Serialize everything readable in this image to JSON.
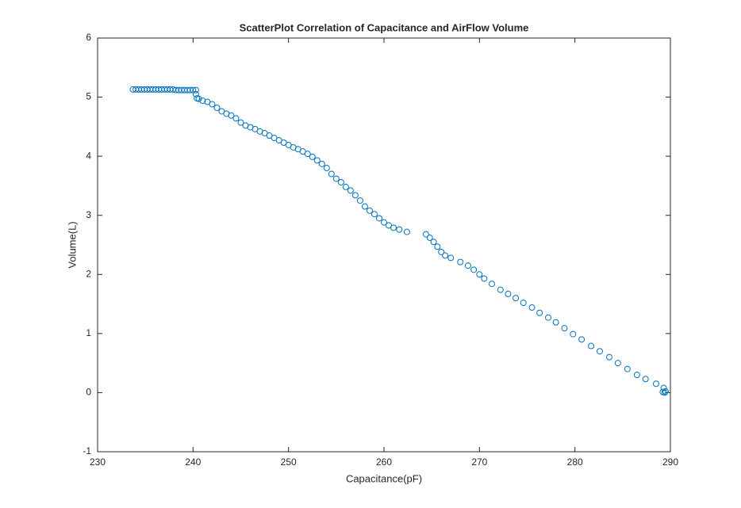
{
  "chart_data": {
    "type": "scatter",
    "title": "ScatterPlot Correlation of Capacitance and AirFlow Volume",
    "x_label": "Capacitance(pF)",
    "y_label": "Volume(L)",
    "color": "#0072bd",
    "xlim": [
      230,
      290
    ],
    "xticks": [
      230,
      240,
      250,
      260,
      270,
      280,
      290
    ],
    "ylim": [
      -1,
      6
    ],
    "yticks": [
      -1,
      0,
      1,
      2,
      3,
      4,
      5,
      6
    ],
    "x": [
      233.7,
      234.0,
      234.3,
      234.6,
      234.9,
      235.2,
      235.5,
      235.8,
      236.1,
      236.4,
      236.7,
      237.0,
      237.3,
      237.6,
      237.9,
      238.2,
      238.5,
      238.8,
      239.1,
      239.4,
      239.7,
      240.0,
      240.3,
      240.3,
      240.4,
      240.6,
      241,
      241.5,
      242,
      242.5,
      243,
      243.5,
      244,
      244.5,
      245,
      245.5,
      246,
      246.5,
      247,
      247.5,
      248,
      248.5,
      249,
      249.5,
      250,
      250.5,
      251,
      251.5,
      252,
      252.5,
      253,
      253.5,
      254,
      254.5,
      255,
      255.5,
      256,
      256.5,
      257,
      257.5,
      258,
      258.5,
      259,
      259.5,
      260,
      260.5,
      261,
      261.6,
      262.4,
      264.4,
      264.8,
      265.2,
      265.6,
      266,
      266.4,
      267,
      268,
      268.8,
      269.4,
      270,
      270.5,
      271.3,
      272.2,
      273,
      273.8,
      274.6,
      275.5,
      276.3,
      277.2,
      278,
      278.9,
      279.8,
      280.7,
      281.7,
      282.6,
      283.6,
      284.5,
      285.5,
      286.5,
      287.4,
      288.5,
      289.3,
      289.2,
      289.4,
      289.5
    ],
    "values": [
      5.13,
      5.13,
      5.13,
      5.13,
      5.13,
      5.13,
      5.13,
      5.13,
      5.13,
      5.13,
      5.13,
      5.13,
      5.13,
      5.13,
      5.13,
      5.12,
      5.12,
      5.12,
      5.12,
      5.12,
      5.12,
      5.12,
      5.12,
      5.05,
      4.98,
      4.97,
      4.94,
      4.92,
      4.88,
      4.82,
      4.76,
      4.72,
      4.69,
      4.64,
      4.57,
      4.52,
      4.49,
      4.46,
      4.42,
      4.39,
      4.35,
      4.31,
      4.27,
      4.23,
      4.19,
      4.15,
      4.12,
      4.08,
      4.04,
      3.99,
      3.93,
      3.87,
      3.8,
      3.7,
      3.62,
      3.56,
      3.48,
      3.42,
      3.34,
      3.25,
      3.15,
      3.08,
      3.02,
      2.95,
      2.88,
      2.83,
      2.79,
      2.76,
      2.72,
      2.68,
      2.62,
      2.55,
      2.47,
      2.38,
      2.32,
      2.28,
      2.21,
      2.15,
      2.08,
      2.0,
      1.93,
      1.84,
      1.74,
      1.67,
      1.6,
      1.52,
      1.44,
      1.35,
      1.27,
      1.19,
      1.09,
      0.99,
      0.9,
      0.79,
      0.7,
      0.6,
      0.5,
      0.4,
      0.3,
      0.23,
      0.15,
      0.08,
      0.01,
      0.0,
      0.02
    ]
  }
}
